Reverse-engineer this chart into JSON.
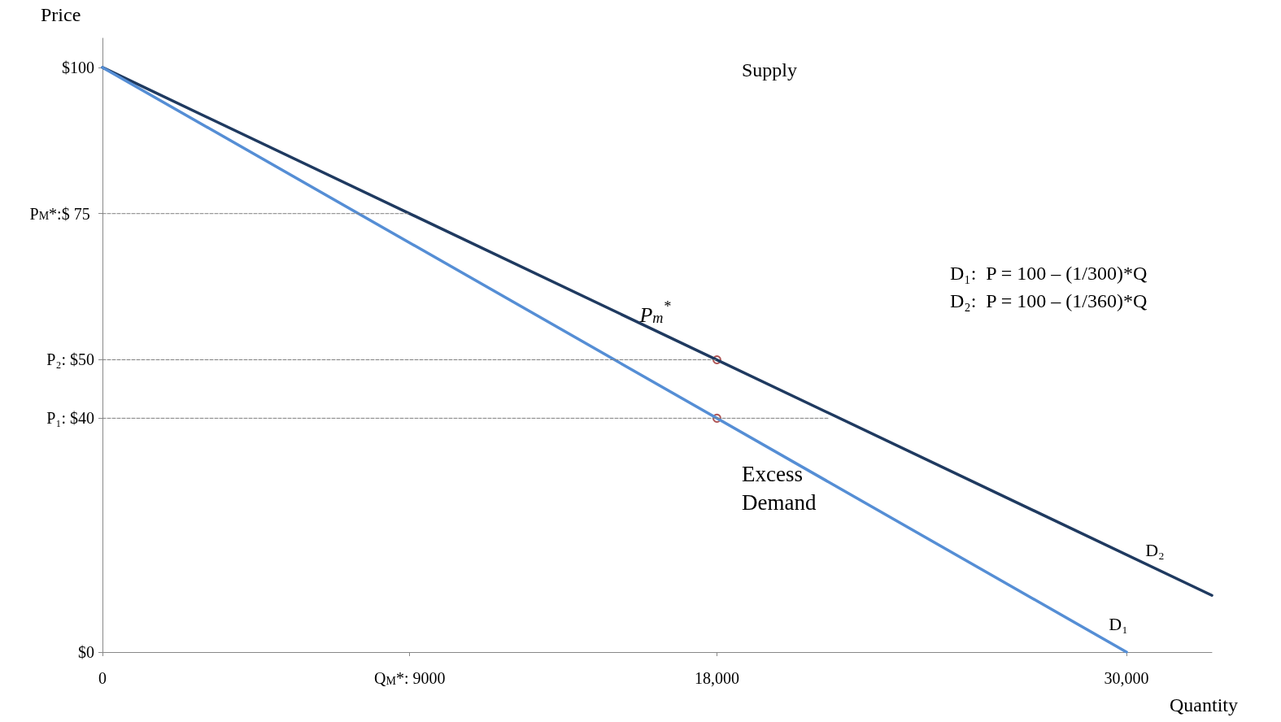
{
  "chart_data": {
    "type": "line",
    "xlabel": "Quantity",
    "ylabel": "Price",
    "xlim": [
      0,
      32500
    ],
    "ylim": [
      0,
      105
    ],
    "xticks": [
      0,
      {
        "value": 9000,
        "label": "Q$_{M}$*: 9000"
      },
      {
        "value": 18000,
        "label": "18,000"
      },
      {
        "value": 30000,
        "label": "30,000"
      }
    ],
    "yticks": [
      {
        "value": 0,
        "label": "$0"
      },
      {
        "value": 40,
        "label": "P₁: $40"
      },
      {
        "value": 50,
        "label": "P₂: $50"
      },
      {
        "value": 75,
        "label": "P$_{M}$*:$ 75"
      },
      {
        "value": 100,
        "label": "$100"
      }
    ],
    "grid": false,
    "legend": false,
    "series": [
      {
        "name": "D₂",
        "color": "#1f3a60",
        "x": [
          0,
          32500
        ],
        "values": [
          100,
          9.7
        ],
        "marker": "none",
        "line_style": "solid"
      },
      {
        "name": "D₁",
        "color": "#558ed5",
        "x": [
          0,
          30000
        ],
        "values": [
          100,
          0
        ],
        "marker": "none",
        "line_style": "solid"
      },
      {
        "color": "#7f7f7f",
        "x": [
          0,
          9000
        ],
        "values": [
          75,
          75
        ],
        "marker": "none",
        "line_style": "dashed"
      },
      {
        "color": "#7f7f7f",
        "x": [
          0,
          18000
        ],
        "values": [
          50,
          50
        ],
        "marker": "none",
        "line_style": "dashed"
      },
      {
        "color": "#7f7f7f",
        "x": [
          0,
          21300
        ],
        "values": [
          40,
          40
        ],
        "marker": "none",
        "line_style": "dashed"
      },
      {
        "type": "scatter",
        "color": "#9b2a2a",
        "x": [
          18000,
          18000
        ],
        "values": [
          50,
          40
        ],
        "marker": "circle"
      }
    ],
    "annotations": [
      "Supply",
      "Excess\nDemand",
      "D₁:  P = 100 – (1/300)*Q",
      "D₂:  P = 100 – (1/360)*Q",
      {
        "text": "P$_{m}$$^{*}$",
        "x": 18000,
        "y": 50
      }
    ]
  }
}
